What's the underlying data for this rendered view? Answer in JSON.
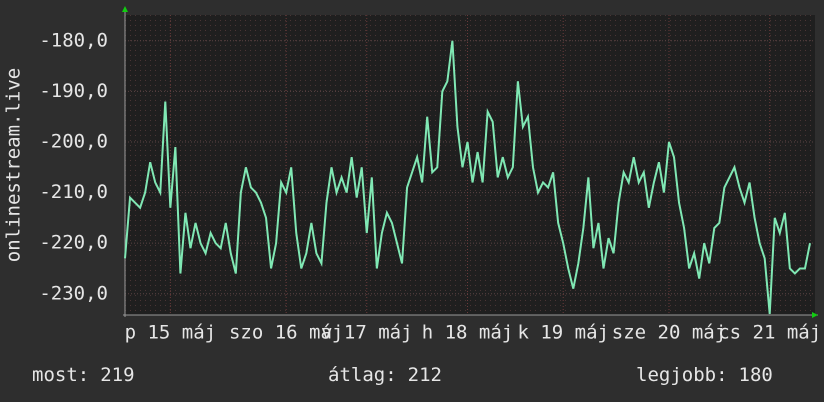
{
  "chart_data": {
    "type": "line",
    "ylabel": "onlinestream.live",
    "xlim": [
      0,
      136
    ],
    "ylim": [
      -234.2,
      -174.9
    ],
    "yticks": [
      {
        "value": -180,
        "label": "-180,0"
      },
      {
        "value": -190,
        "label": "-190,0"
      },
      {
        "value": -200,
        "label": "-200,0"
      },
      {
        "value": -210,
        "label": "-210,0"
      },
      {
        "value": -220,
        "label": "-220,0"
      },
      {
        "value": -230,
        "label": "-230,0"
      }
    ],
    "xticks": [
      {
        "value": 9,
        "label": "p 15 máj"
      },
      {
        "value": 32,
        "label": "szo 16 máj"
      },
      {
        "value": 48,
        "label": "v 17 máj"
      },
      {
        "value": 68,
        "label": "h 18 máj"
      },
      {
        "value": 87,
        "label": "k 19 máj"
      },
      {
        "value": 108,
        "label": "sze 20 máj"
      },
      {
        "value": 128,
        "label": "cs 21 máj"
      }
    ],
    "grid": true,
    "series": [
      {
        "color": "#80e8b4",
        "values": [
          -223,
          -211,
          -212,
          -213,
          -210,
          -204,
          -208,
          -210,
          -192,
          -213,
          -201,
          -226,
          -214,
          -221,
          -216,
          -220,
          -222,
          -218,
          -220,
          -221,
          -216,
          -222,
          -226,
          -210,
          -205,
          -209,
          -210,
          -212,
          -215,
          -225,
          -220,
          -208,
          -210,
          -205,
          -218,
          -225,
          -222,
          -216,
          -222,
          -224,
          -212,
          -205,
          -210,
          -207,
          -210,
          -203,
          -211,
          -205,
          -218,
          -207,
          -225,
          -218,
          -214,
          -216,
          -220,
          -224,
          -209,
          -206,
          -203,
          -208,
          -195,
          -206,
          -205,
          -190,
          -188,
          -180,
          -197,
          -205,
          -200,
          -208,
          -202,
          -208,
          -194,
          -196,
          -207,
          -203,
          -207,
          -205,
          -188,
          -197,
          -195,
          -205,
          -210,
          -208,
          -209,
          -206,
          -216,
          -220,
          -225,
          -229,
          -224,
          -217,
          -207,
          -221,
          -216,
          -225,
          -219,
          -222,
          -212,
          -206,
          -208,
          -203,
          -208,
          -206,
          -213,
          -208,
          -204,
          -210,
          -200,
          -203,
          -212,
          -217,
          -225,
          -222,
          -227,
          -220,
          -224,
          -217,
          -216,
          -209,
          -207,
          -205,
          -209,
          -212,
          -208,
          -215,
          -220,
          -223,
          -234,
          -215,
          -218,
          -214,
          -225,
          -226,
          -225,
          -225,
          -220
        ]
      }
    ],
    "stats": [
      {
        "label": "most:",
        "value": 219
      },
      {
        "label": "átlag:",
        "value": 212
      },
      {
        "label": "legjobb:",
        "value": 180
      }
    ]
  }
}
